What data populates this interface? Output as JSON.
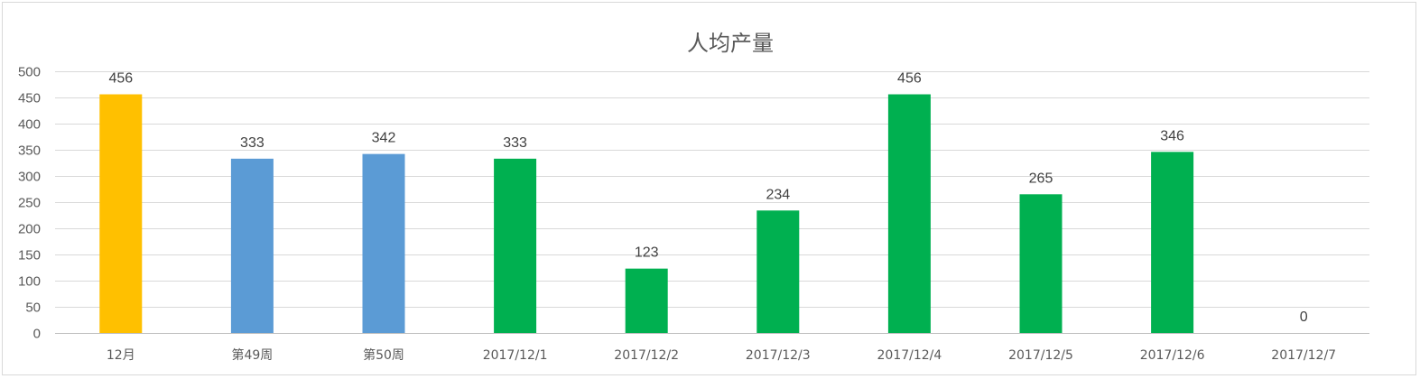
{
  "chart_data": {
    "type": "bar",
    "title": "人均产量",
    "categories": [
      "12月",
      "第49周",
      "第50周",
      "2017/12/1",
      "2017/12/2",
      "2017/12/3",
      "2017/12/4",
      "2017/12/5",
      "2017/12/6",
      "2017/12/7"
    ],
    "values": [
      456,
      333,
      342,
      333,
      123,
      234,
      456,
      265,
      346,
      0
    ],
    "data_labels": [
      "456",
      "333",
      "342",
      "333",
      "123",
      "234",
      "456",
      "265",
      "346",
      "0"
    ],
    "bar_colors": [
      "#FFC000",
      "#5B9BD5",
      "#5B9BD5",
      "#00B050",
      "#00B050",
      "#00B050",
      "#00B050",
      "#00B050",
      "#00B050",
      "#00B050"
    ],
    "ylim": [
      0,
      500
    ],
    "yticks": [
      "0",
      "50",
      "100",
      "150",
      "200",
      "250",
      "300",
      "350",
      "400",
      "450",
      "500"
    ],
    "grid": true,
    "legend": "none"
  }
}
